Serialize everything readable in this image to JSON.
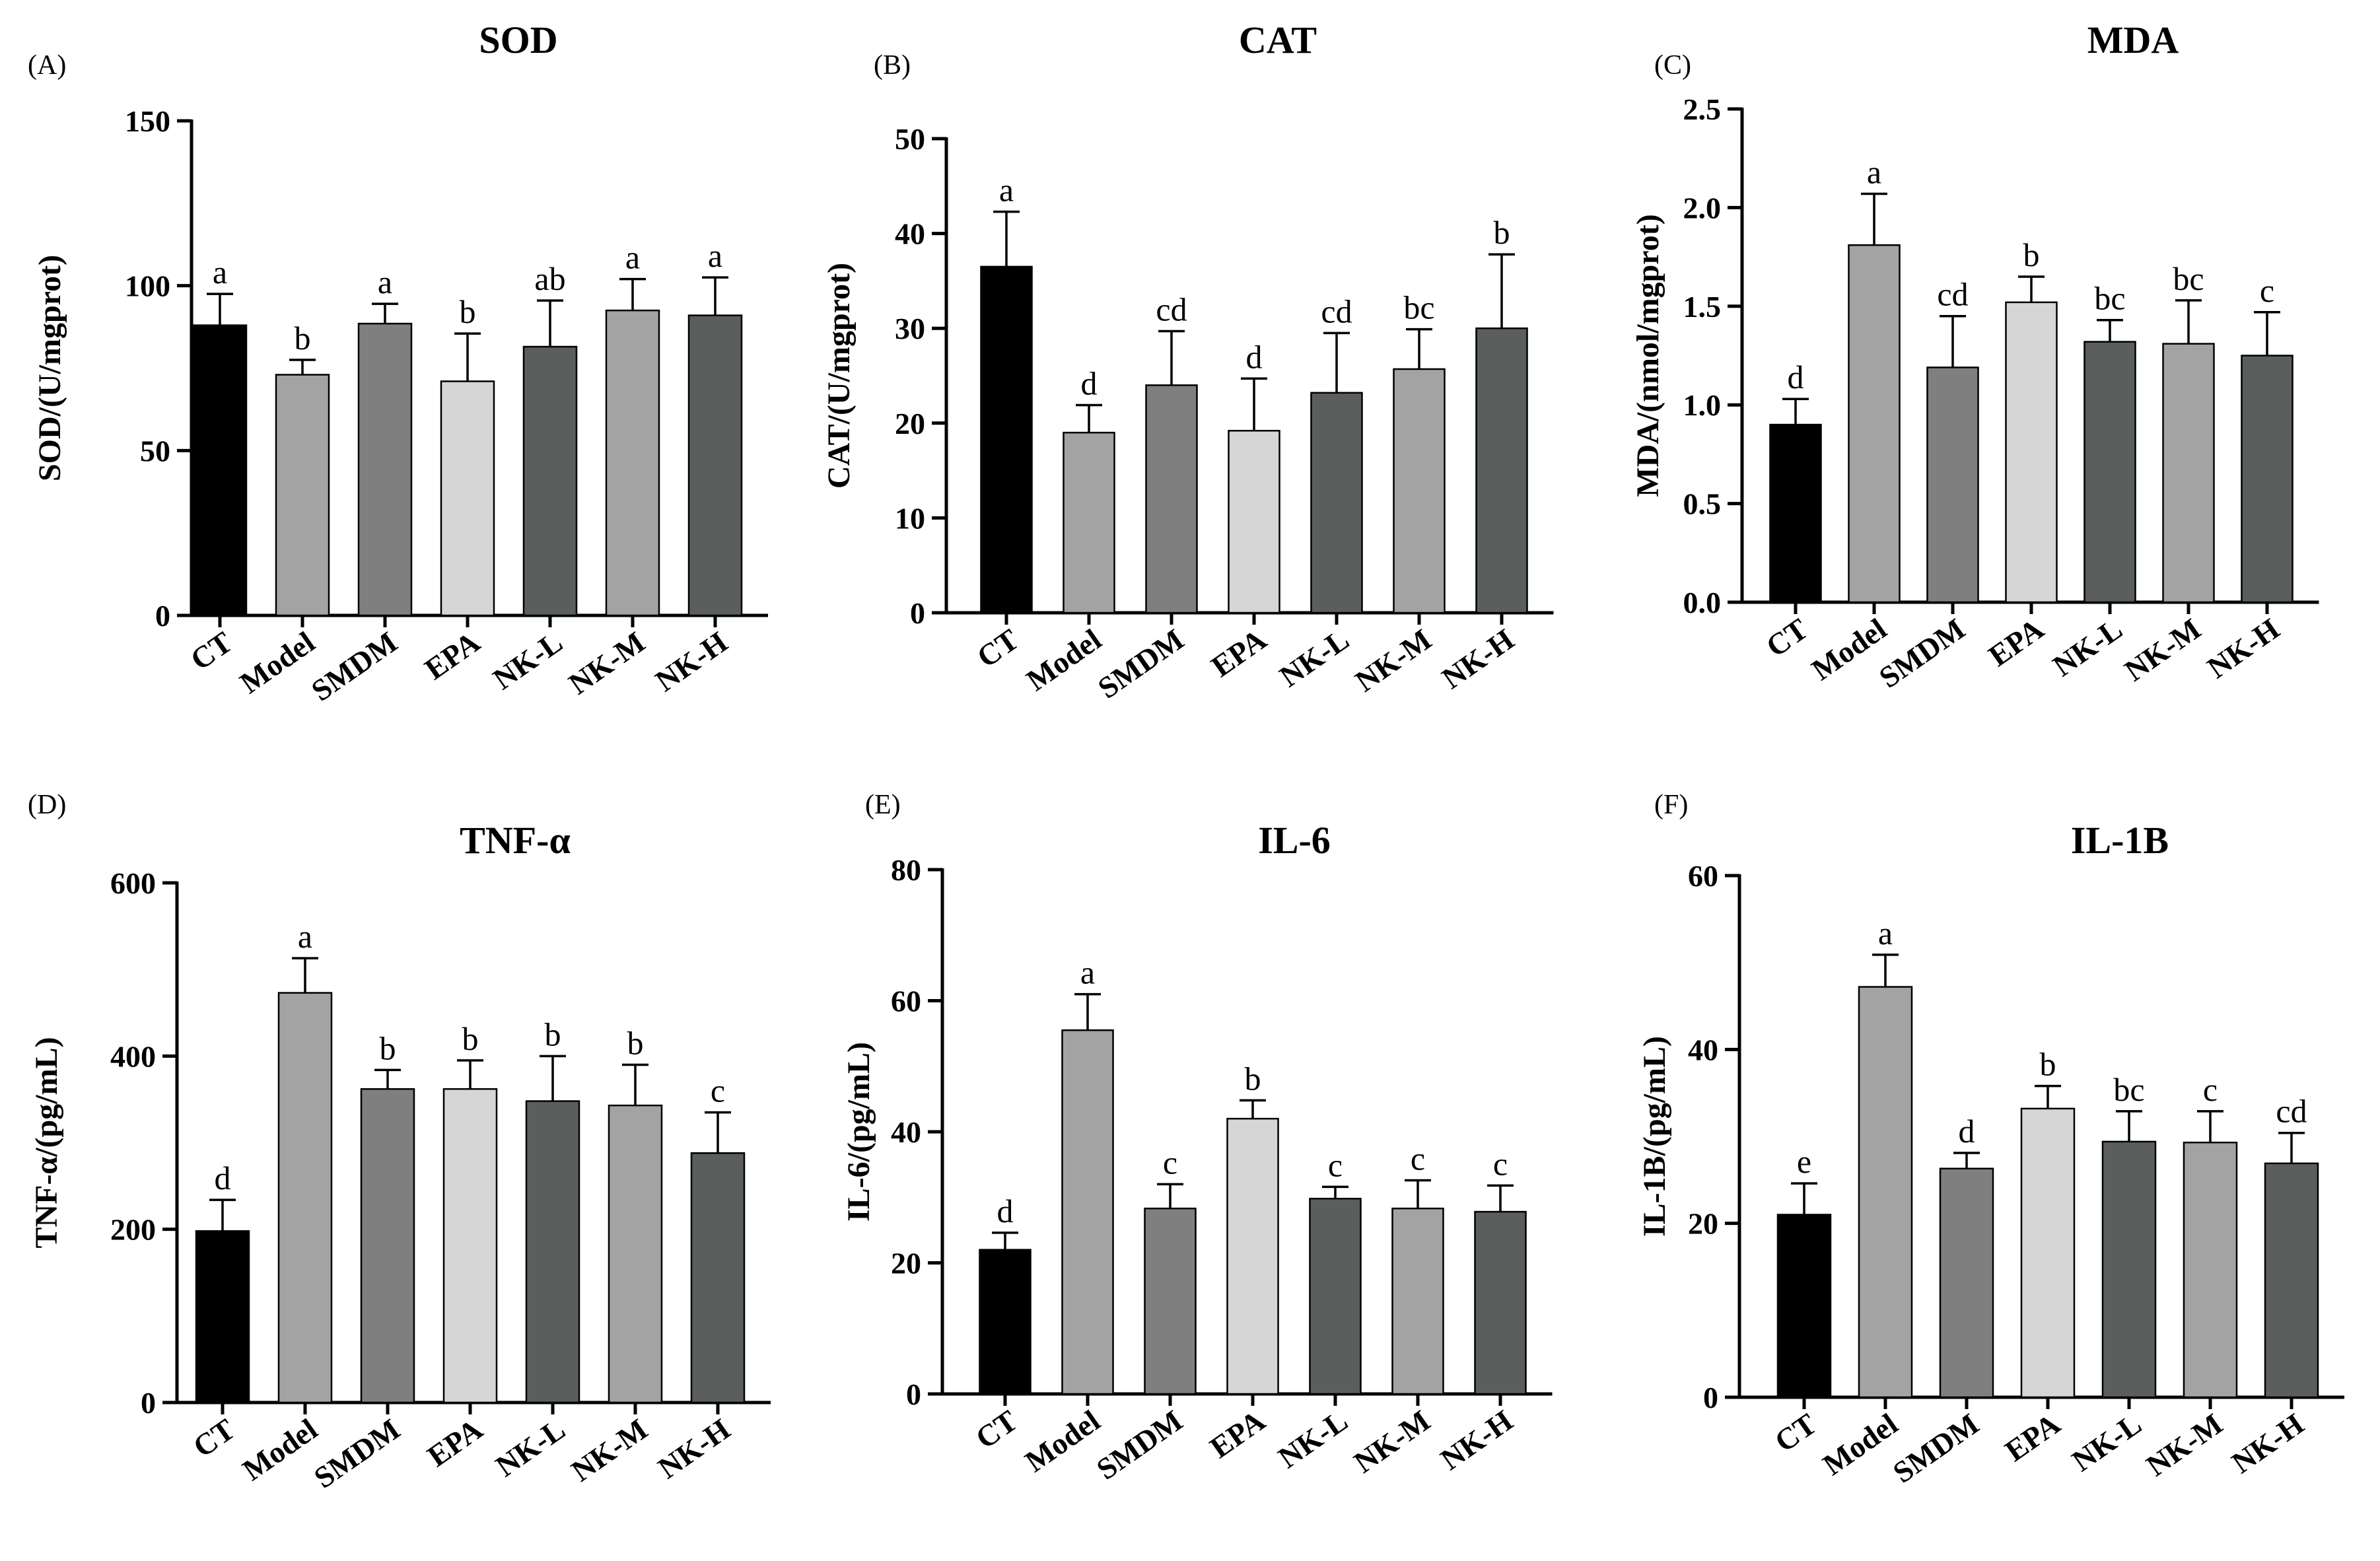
{
  "chart_data": [
    {
      "panel": "(A)",
      "title": "SOD",
      "type": "bar",
      "ylabel": "SOD/(U/mgprot)",
      "ylim": [
        0,
        150
      ],
      "yticks": [
        0,
        50,
        100,
        150
      ],
      "ytick_labels": [
        "0",
        "50",
        "100",
        "150"
      ],
      "categories": [
        "CT",
        "Model",
        "SMDM",
        "EPA",
        "NK-L",
        "NK-M",
        "NK-H"
      ],
      "values": [
        88,
        73,
        88.5,
        71,
        81.5,
        92.5,
        91
      ],
      "errors": [
        9.5,
        4.5,
        6,
        14.5,
        14,
        9.5,
        11.5
      ],
      "letters": [
        "a",
        "b",
        "a",
        "b",
        "ab",
        "a",
        "a"
      ]
    },
    {
      "panel": "(B)",
      "title": "CAT",
      "type": "bar",
      "ylabel": "CAT/(U/mgprot)",
      "ylim": [
        0,
        50
      ],
      "yticks": [
        0,
        10,
        20,
        30,
        40,
        50
      ],
      "ytick_labels": [
        "0",
        "10",
        "20",
        "30",
        "40",
        "50"
      ],
      "categories": [
        "CT",
        "Model",
        "SMDM",
        "EPA",
        "NK-L",
        "NK-M",
        "NK-H"
      ],
      "values": [
        36.5,
        19,
        24,
        19.2,
        23.2,
        25.7,
        30
      ],
      "errors": [
        5.8,
        2.9,
        5.7,
        5.5,
        6.3,
        4.2,
        7.8
      ],
      "letters": [
        "a",
        "d",
        "cd",
        "d",
        "cd",
        "bc",
        "b"
      ]
    },
    {
      "panel": "(C)",
      "title": "MDA",
      "type": "bar",
      "ylabel": "MDA/(nmol/mgprot)",
      "ylim": [
        0,
        2.5
      ],
      "yticks": [
        0,
        0.5,
        1,
        1.5,
        2,
        2.5
      ],
      "ytick_labels": [
        "0.0",
        "0.5",
        "1.0",
        "1.5",
        "2.0",
        "2.5"
      ],
      "categories": [
        "CT",
        "Model",
        "SMDM",
        "EPA",
        "NK-L",
        "NK-M",
        "NK-H"
      ],
      "values": [
        0.9,
        1.81,
        1.19,
        1.52,
        1.32,
        1.31,
        1.25
      ],
      "errors": [
        0.13,
        0.26,
        0.26,
        0.13,
        0.11,
        0.22,
        0.22
      ],
      "letters": [
        "d",
        "a",
        "cd",
        "b",
        "bc",
        "bc",
        "c"
      ]
    },
    {
      "panel": "(D)",
      "title": "TNF-α",
      "type": "bar",
      "ylabel": "TNF-α/(pg/mL)",
      "ylim": [
        0,
        600
      ],
      "yticks": [
        0,
        200,
        400,
        600
      ],
      "ytick_labels": [
        "0",
        "200",
        "400",
        "600"
      ],
      "categories": [
        "CT",
        "Model",
        "SMDM",
        "EPA",
        "NK-L",
        "NK-M",
        "NK-H"
      ],
      "values": [
        198,
        473,
        362,
        362,
        348,
        343,
        288
      ],
      "errors": [
        36,
        40,
        22,
        33,
        52,
        47,
        47
      ],
      "letters": [
        "d",
        "a",
        "b",
        "b",
        "b",
        "b",
        "c"
      ]
    },
    {
      "panel": "(E)",
      "title": "IL-6",
      "type": "bar",
      "ylabel": "IL-6/(pg/mL)",
      "ylim": [
        0,
        80
      ],
      "yticks": [
        0,
        20,
        40,
        60,
        80
      ],
      "ytick_labels": [
        "0",
        "20",
        "40",
        "60",
        "80"
      ],
      "categories": [
        "CT",
        "Model",
        "SMDM",
        "EPA",
        "NK-L",
        "NK-M",
        "NK-H"
      ],
      "values": [
        22,
        55.5,
        28.3,
        42,
        29.8,
        28.3,
        27.8
      ],
      "errors": [
        2.6,
        5.5,
        3.7,
        2.8,
        1.8,
        4.3,
        4
      ],
      "letters": [
        "d",
        "a",
        "c",
        "b",
        "c",
        "c",
        "c"
      ]
    },
    {
      "panel": "(F)",
      "title": "IL-1B",
      "type": "bar",
      "ylabel": "IL-1B/(pg/mL)",
      "ylim": [
        0,
        60
      ],
      "yticks": [
        0,
        20,
        40,
        60
      ],
      "ytick_labels": [
        "0",
        "20",
        "40",
        "60"
      ],
      "categories": [
        "CT",
        "Model",
        "SMDM",
        "EPA",
        "NK-L",
        "NK-M",
        "NK-H"
      ],
      "values": [
        21,
        47.2,
        26.3,
        33.2,
        29.4,
        29.3,
        26.9
      ],
      "errors": [
        3.6,
        3.7,
        1.8,
        2.6,
        3.5,
        3.6,
        3.5
      ],
      "letters": [
        "e",
        "a",
        "d",
        "b",
        "bc",
        "c",
        "cd"
      ]
    }
  ],
  "colors": {
    "bars": [
      "#000000",
      "#a3a3a3",
      "#7f7f7f",
      "#d6d6d6",
      "#5a5e5c",
      "#a3a3a3",
      "#5a5e5c"
    ],
    "axis": "#000000"
  }
}
